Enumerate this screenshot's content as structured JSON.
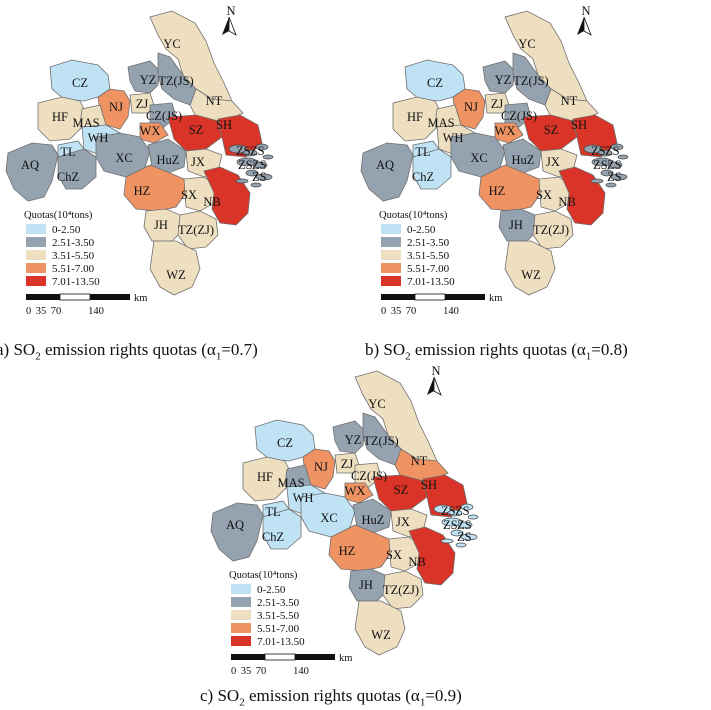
{
  "colors": {
    "class_0": "#bfe3f5",
    "class_1": "#95a3b0",
    "class_2": "#eedfc0",
    "class_3": "#ef9363",
    "class_4": "#d93427",
    "border": "#6f6f6f"
  },
  "north_arrow": {
    "label": "N",
    "icon": "north-arrow-icon"
  },
  "legend": {
    "title": "Quotas(10⁴tons)",
    "classes": [
      "0-2.50",
      "2.51-3.50",
      "3.51-5.50",
      "5.51-7.00",
      "7.01-13.50"
    ]
  },
  "scale_bar": {
    "unit": "km",
    "ticks": [
      "0",
      "35",
      "70",
      "140"
    ]
  },
  "cities": [
    "CZ",
    "YC",
    "YZ",
    "TZ(JS)",
    "NT",
    "HF",
    "MAS",
    "NJ",
    "ZJ",
    "CZ(JS)",
    "WX",
    "SZ",
    "SH",
    "WH",
    "TL",
    "AQ",
    "XC",
    "ChZ",
    "HuZ",
    "JX",
    "HZ",
    "SX",
    "NB",
    "ZS",
    "JH",
    "TZ(ZJ)",
    "WZ"
  ],
  "panels": [
    {
      "caption": {
        "prefix": "a) SO",
        "sub": "2",
        "mid": " emission rights quotas (α",
        "sub2": "1",
        "suffix": "=0.7)"
      },
      "quota_class": {
        "CZ": 0,
        "YC": 2,
        "YZ": 1,
        "TZ(JS)": 1,
        "NT": 2,
        "HF": 2,
        "MAS": 2,
        "NJ": 3,
        "ZJ": 2,
        "CZ(JS)": 1,
        "WX": 3,
        "SZ": 4,
        "SH": 4,
        "WH": 0,
        "TL": 0,
        "AQ": 1,
        "XC": 1,
        "ChZ": 1,
        "HuZ": 1,
        "JX": 2,
        "HZ": 3,
        "SX": 2,
        "NB": 4,
        "ZS": 1,
        "JH": 2,
        "TZ(ZJ)": 2,
        "WZ": 2
      }
    },
    {
      "caption": {
        "prefix": "b) SO",
        "sub": "2",
        "mid": " emission rights quotas (α",
        "sub2": "1",
        "suffix": "=0.8)"
      },
      "quota_class": {
        "CZ": 0,
        "YC": 2,
        "YZ": 1,
        "TZ(JS)": 1,
        "NT": 2,
        "HF": 2,
        "MAS": 2,
        "NJ": 3,
        "ZJ": 2,
        "CZ(JS)": 1,
        "WX": 3,
        "SZ": 4,
        "SH": 4,
        "WH": 2,
        "TL": 0,
        "AQ": 1,
        "XC": 1,
        "ChZ": 0,
        "HuZ": 1,
        "JX": 2,
        "HZ": 3,
        "SX": 2,
        "NB": 4,
        "ZS": 1,
        "JH": 1,
        "TZ(ZJ)": 2,
        "WZ": 2
      }
    },
    {
      "caption": {
        "prefix": "c) SO",
        "sub": "2",
        "mid": " emission rights quotas (α",
        "sub2": "1",
        "suffix": "=0.9)"
      },
      "quota_class": {
        "CZ": 0,
        "YC": 2,
        "YZ": 1,
        "TZ(JS)": 1,
        "NT": 3,
        "HF": 2,
        "MAS": 1,
        "NJ": 3,
        "ZJ": 2,
        "CZ(JS)": 2,
        "WX": 3,
        "SZ": 4,
        "SH": 4,
        "WH": 0,
        "TL": 0,
        "AQ": 1,
        "XC": 0,
        "ChZ": 0,
        "HuZ": 1,
        "JX": 2,
        "HZ": 3,
        "SX": 2,
        "NB": 4,
        "ZS": 0,
        "JH": 1,
        "TZ(ZJ)": 2,
        "WZ": 2
      }
    }
  ]
}
